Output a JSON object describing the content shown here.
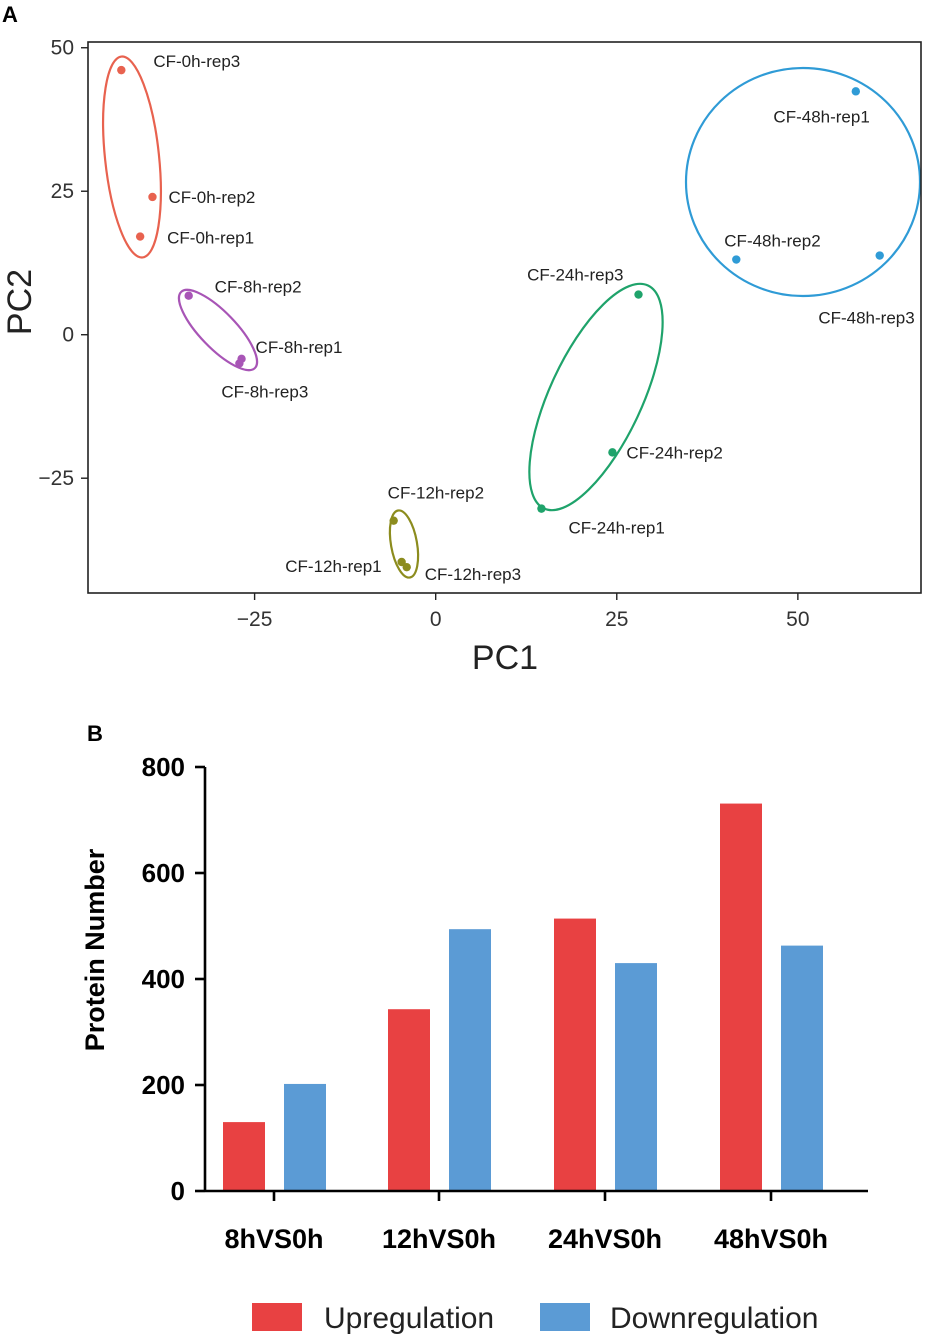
{
  "chart_data": [
    {
      "panel": "A",
      "type": "scatter",
      "title": "",
      "xlabel": "PC1",
      "ylabel": "PC2",
      "xlim": [
        -48,
        67
      ],
      "ylim": [
        -45,
        51
      ],
      "xticks": [
        "−25",
        "0",
        "25",
        "50"
      ],
      "xtick_values": [
        -25,
        0,
        25,
        50
      ],
      "yticks": [
        "50",
        "25",
        "0",
        "−25"
      ],
      "ytick_values": [
        50,
        25,
        0,
        -25
      ],
      "grid": false,
      "groups": [
        {
          "name": "CF-0h",
          "color": "#e8624f",
          "points": [
            {
              "label": "CF-0h-rep3",
              "x": -43.4,
              "y": 46.1
            },
            {
              "label": "CF-0h-rep2",
              "x": -39.1,
              "y": 24.0
            },
            {
              "label": "CF-0h-rep1",
              "x": -40.8,
              "y": 17.1
            }
          ]
        },
        {
          "name": "CF-8h",
          "color": "#a855b6",
          "points": [
            {
              "label": "CF-8h-rep2",
              "x": -34.1,
              "y": 6.8
            },
            {
              "label": "CF-8h-rep1",
              "x": -26.8,
              "y": -4.2
            },
            {
              "label": "CF-8h-rep3",
              "x": -27.1,
              "y": -5.0
            }
          ]
        },
        {
          "name": "CF-12h",
          "color": "#8c8c1e",
          "points": [
            {
              "label": "CF-12h-rep2",
              "x": -5.8,
              "y": -32.4
            },
            {
              "label": "CF-12h-rep1",
              "x": -4.7,
              "y": -39.6
            },
            {
              "label": "CF-12h-rep3",
              "x": -4.0,
              "y": -40.5
            }
          ]
        },
        {
          "name": "CF-24h",
          "color": "#1fa36b",
          "points": [
            {
              "label": "CF-24h-rep3",
              "x": 28.0,
              "y": 7.0
            },
            {
              "label": "CF-24h-rep2",
              "x": 24.4,
              "y": -20.5
            },
            {
              "label": "CF-24h-rep1",
              "x": 14.6,
              "y": -30.3
            }
          ]
        },
        {
          "name": "CF-48h",
          "color": "#2f9bd6",
          "points": [
            {
              "label": "CF-48h-rep1",
              "x": 58.0,
              "y": 42.4
            },
            {
              "label": "CF-48h-rep2",
              "x": 41.5,
              "y": 13.1
            },
            {
              "label": "CF-48h-rep3",
              "x": 61.3,
              "y": 13.8
            }
          ]
        }
      ]
    },
    {
      "panel": "B",
      "type": "bar",
      "title": "",
      "xlabel": "",
      "ylabel": "Protein Number",
      "ylim": [
        0,
        800
      ],
      "yticks": [
        "0",
        "200",
        "400",
        "600",
        "800"
      ],
      "ytick_values": [
        0,
        200,
        400,
        600,
        800
      ],
      "categories": [
        "8hVS0h",
        "12hVS0h",
        "24hVS0h",
        "48hVS0h"
      ],
      "series": [
        {
          "name": "Upregulation",
          "color": "#e84142",
          "values": [
            130,
            343,
            514,
            731
          ]
        },
        {
          "name": "Downregulation",
          "color": "#5b9bd5",
          "values": [
            202,
            494,
            430,
            463
          ]
        }
      ],
      "legend": "bottom"
    }
  ]
}
